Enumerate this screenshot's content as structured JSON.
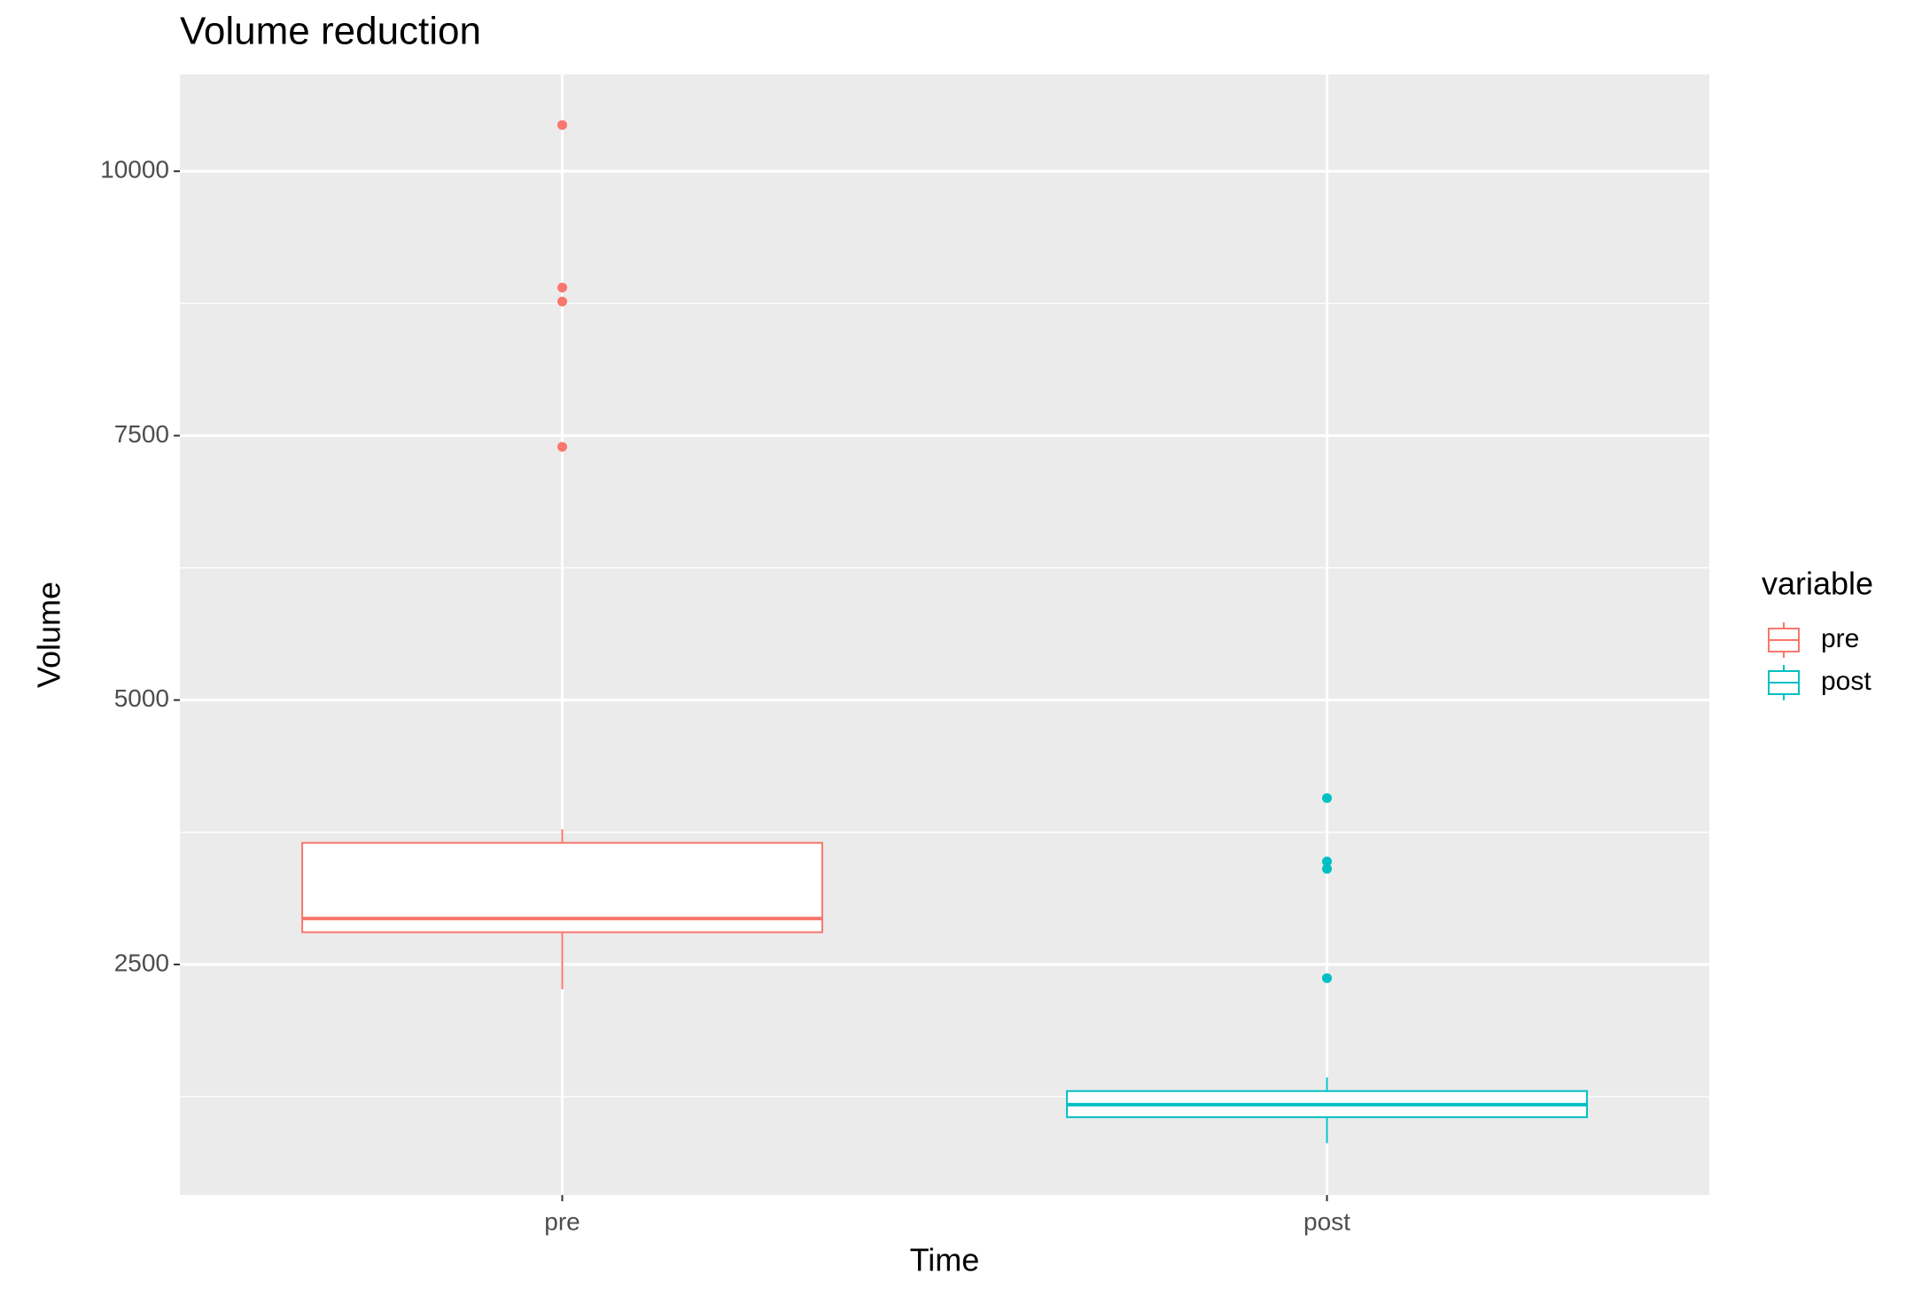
{
  "chart_data": {
    "type": "boxplot",
    "title": "Volume reduction",
    "x_label": "Time",
    "y_label": "Volume",
    "categories": [
      "pre",
      "post"
    ],
    "legend_title": "variable",
    "legend_position": "right",
    "series": [
      {
        "name": "pre",
        "color": "#F8766D",
        "whisker_low": 2265,
        "q1": 2805,
        "median": 2934,
        "q3": 3650,
        "whisker_high": 3779,
        "outliers": [
          10437,
          8900,
          8768,
          7394
        ]
      },
      {
        "name": "post",
        "color": "#00BFC4",
        "whisker_low": 810,
        "q1": 1056,
        "median": 1174,
        "q3": 1303,
        "whisker_high": 1432,
        "outliers": [
          4073,
          3474,
          3404,
          2371
        ]
      }
    ],
    "ylim": [
      320,
      10915
    ],
    "yticks": [
      2500,
      5000,
      7500,
      10000
    ],
    "minor_yticks": [
      1250,
      3750,
      6250,
      8750
    ],
    "grid": true
  }
}
